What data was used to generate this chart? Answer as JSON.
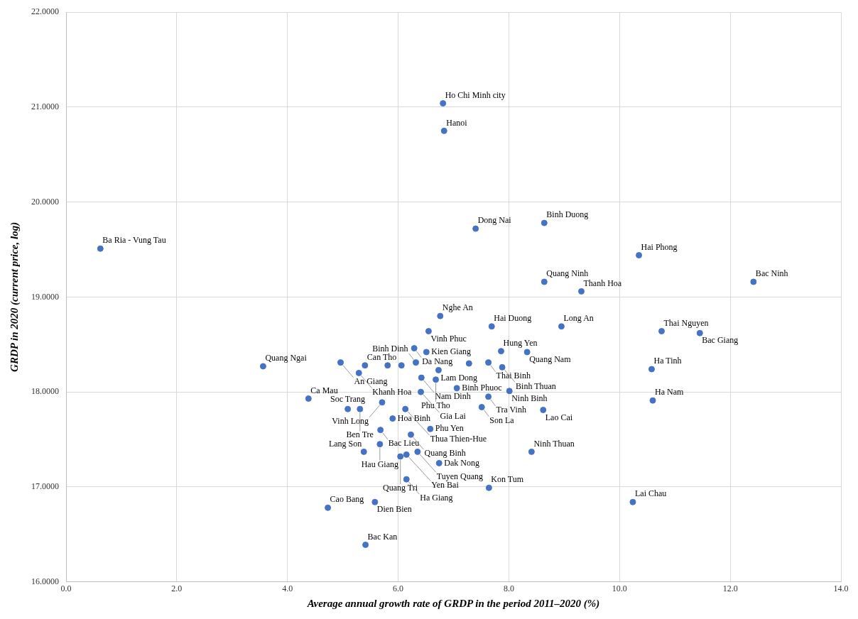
{
  "chart_data": {
    "type": "scatter",
    "xlabel": "Average annual growth rate of GRDP in the period 2011–2020 (%)",
    "ylabel": "GRDP in 2020 (current price, log)",
    "xlim": [
      0,
      14
    ],
    "xticks": [
      {
        "value": 0,
        "label": "0.0"
      },
      {
        "value": 2,
        "label": "2.0"
      },
      {
        "value": 4,
        "label": "4.0"
      },
      {
        "value": 6,
        "label": "6.0"
      },
      {
        "value": 8,
        "label": "8.0"
      },
      {
        "value": 10,
        "label": "10.0"
      },
      {
        "value": 12,
        "label": "12.0"
      },
      {
        "value": 14,
        "label": "14.0"
      }
    ],
    "ylim": [
      16,
      22
    ],
    "yticks": [
      {
        "value": 16,
        "label": "16.0000"
      },
      {
        "value": 17,
        "label": "17.0000"
      },
      {
        "value": 18,
        "label": "18.0000"
      },
      {
        "value": 19,
        "label": "19.0000"
      },
      {
        "value": 20,
        "label": "20.0000"
      },
      {
        "value": 21,
        "label": "21.0000"
      },
      {
        "value": 22,
        "label": "22.0000"
      }
    ],
    "grid": true,
    "marker": "circle",
    "series": [
      {
        "color": "#4472c4",
        "x": [
          6.81,
          6.83,
          0.62,
          7.4,
          8.64,
          10.35,
          8.64,
          9.31,
          12.42,
          6.76,
          7.69,
          8.95,
          10.76,
          11.45,
          6.55,
          6.29,
          6.51,
          7.86,
          8.33,
          7.63,
          7.88,
          6.32,
          6.73,
          6.42,
          6.68,
          3.56,
          4.96,
          5.4,
          5.29,
          10.58,
          7.06,
          8.01,
          6.41,
          4.38,
          5.71,
          7.63,
          5.09,
          5.31,
          6.13,
          7.51,
          8.62,
          10.6,
          5.9,
          5.68,
          6.58,
          6.23,
          5.67,
          5.38,
          6.35,
          6.15,
          8.41,
          6.74,
          6.04,
          6.15,
          7.64,
          10.24,
          5.58,
          4.73,
          5.41,
          5.81,
          6.06,
          7.28
        ],
        "values": [
          21.04,
          20.75,
          19.51,
          19.72,
          19.78,
          19.44,
          19.16,
          19.06,
          19.16,
          18.8,
          18.69,
          18.69,
          18.64,
          18.62,
          18.64,
          18.46,
          18.42,
          18.43,
          18.42,
          18.31,
          18.26,
          18.31,
          18.23,
          18.15,
          18.13,
          18.27,
          18.31,
          18.28,
          18.2,
          18.24,
          18.04,
          18.01,
          18.0,
          17.93,
          17.89,
          17.95,
          17.82,
          17.82,
          17.82,
          17.84,
          17.81,
          17.91,
          17.72,
          17.6,
          17.61,
          17.55,
          17.45,
          17.37,
          17.37,
          17.34,
          17.37,
          17.25,
          17.32,
          17.08,
          16.99,
          16.84,
          16.84,
          16.78,
          16.39,
          18.28,
          18.28,
          18.3
        ]
      }
    ],
    "annotations": [
      {
        "text": "Ho Chi Minh city",
        "x": 6.81,
        "y": 21.04
      },
      {
        "text": "Hanoi",
        "x": 6.83,
        "y": 20.75
      },
      {
        "text": "Ba Ria - Vung Tau",
        "x": 0.62,
        "y": 19.51
      },
      {
        "text": "Dong Nai",
        "x": 7.4,
        "y": 19.72
      },
      {
        "text": "Binh Duong",
        "x": 8.64,
        "y": 19.78
      },
      {
        "text": "Hai Phong",
        "x": 10.35,
        "y": 19.44
      },
      {
        "text": "Quang Ninh",
        "x": 8.64,
        "y": 19.16
      },
      {
        "text": "Thanh Hoa",
        "x": 9.31,
        "y": 19.06
      },
      {
        "text": "Bac Ninh",
        "x": 12.42,
        "y": 19.16
      },
      {
        "text": "Nghe An",
        "x": 6.76,
        "y": 18.8
      },
      {
        "text": "Hai Duong",
        "x": 7.69,
        "y": 18.69
      },
      {
        "text": "Long An",
        "x": 8.95,
        "y": 18.69
      },
      {
        "text": "Thai Nguyen",
        "x": 10.76,
        "y": 18.64
      },
      {
        "text": "Bac Giang",
        "x": 11.45,
        "y": 18.62
      },
      {
        "text": "Vinh Phuc",
        "x": 6.55,
        "y": 18.64
      },
      {
        "text": "Da Nang",
        "x": 6.29,
        "y": 18.46
      },
      {
        "text": "Kien Giang",
        "x": 6.51,
        "y": 18.42
      },
      {
        "text": "Hung Yen",
        "x": 7.86,
        "y": 18.43
      },
      {
        "text": "Quang Nam",
        "x": 8.33,
        "y": 18.42
      },
      {
        "text": "Thai Binh",
        "x": 7.63,
        "y": 18.31
      },
      {
        "text": "Binh Thuan",
        "x": 7.88,
        "y": 18.26
      },
      {
        "text": "Binh Dinh",
        "x": 6.32,
        "y": 18.31
      },
      {
        "text": "Lam Dong",
        "x": 6.73,
        "y": 18.23
      },
      {
        "text": "Nam Dinh",
        "x": 6.42,
        "y": 18.15
      },
      {
        "text": "Phu Tho",
        "x": 6.68,
        "y": 18.13
      },
      {
        "text": "Quang Ngai",
        "x": 3.56,
        "y": 18.27
      },
      {
        "text": "An Giang",
        "x": 4.96,
        "y": 18.31
      },
      {
        "text": "Can Tho",
        "x": 5.4,
        "y": 18.28
      },
      {
        "text": "Khanh Hoa",
        "x": 5.29,
        "y": 18.2
      },
      {
        "text": "Ha Tinh",
        "x": 10.58,
        "y": 18.24
      },
      {
        "text": "Binh Phuoc",
        "x": 7.06,
        "y": 18.04
      },
      {
        "text": "Ninh Binh",
        "x": 8.01,
        "y": 18.01
      },
      {
        "text": "Gia Lai",
        "x": 6.41,
        "y": 18.0
      },
      {
        "text": "Ca Mau",
        "x": 4.38,
        "y": 17.93
      },
      {
        "text": "Vinh Long",
        "x": 5.71,
        "y": 17.89
      },
      {
        "text": "Tra Vinh",
        "x": 7.63,
        "y": 17.95
      },
      {
        "text": "Soc Trang",
        "x": 5.09,
        "y": 17.82
      },
      {
        "text": "Ben Tre",
        "x": 5.31,
        "y": 17.82
      },
      {
        "text": "Thua Thien-Hue",
        "x": 6.13,
        "y": 17.82
      },
      {
        "text": "Son La",
        "x": 7.51,
        "y": 17.84
      },
      {
        "text": "Lao Cai",
        "x": 8.62,
        "y": 17.81
      },
      {
        "text": "Ha Nam",
        "x": 10.6,
        "y": 17.91
      },
      {
        "text": "Hoa Binh",
        "x": 5.9,
        "y": 17.72
      },
      {
        "text": "Bac Lieu",
        "x": 5.68,
        "y": 17.6
      },
      {
        "text": "Phu Yen",
        "x": 6.58,
        "y": 17.61
      },
      {
        "text": "Quang Binh",
        "x": 6.23,
        "y": 17.55
      },
      {
        "text": "Hau Giang",
        "x": 5.67,
        "y": 17.45
      },
      {
        "text": "Lang Son",
        "x": 5.38,
        "y": 17.37
      },
      {
        "text": "Tuyen Quang",
        "x": 6.35,
        "y": 17.37
      },
      {
        "text": "Yen Bai",
        "x": 6.15,
        "y": 17.34
      },
      {
        "text": "Ninh Thuan",
        "x": 8.41,
        "y": 17.37
      },
      {
        "text": "Dak Nong",
        "x": 6.74,
        "y": 17.25
      },
      {
        "text": "Quang Tri",
        "x": 6.04,
        "y": 17.32
      },
      {
        "text": "Ha Giang",
        "x": 6.15,
        "y": 17.08
      },
      {
        "text": "Kon Tum",
        "x": 7.64,
        "y": 16.99
      },
      {
        "text": "Lai Chau",
        "x": 10.24,
        "y": 16.84
      },
      {
        "text": "Dien Bien",
        "x": 5.58,
        "y": 16.84
      },
      {
        "text": "Cao Bang",
        "x": 4.73,
        "y": 16.78
      },
      {
        "text": "Bac Kan",
        "x": 5.41,
        "y": 16.39
      }
    ]
  }
}
